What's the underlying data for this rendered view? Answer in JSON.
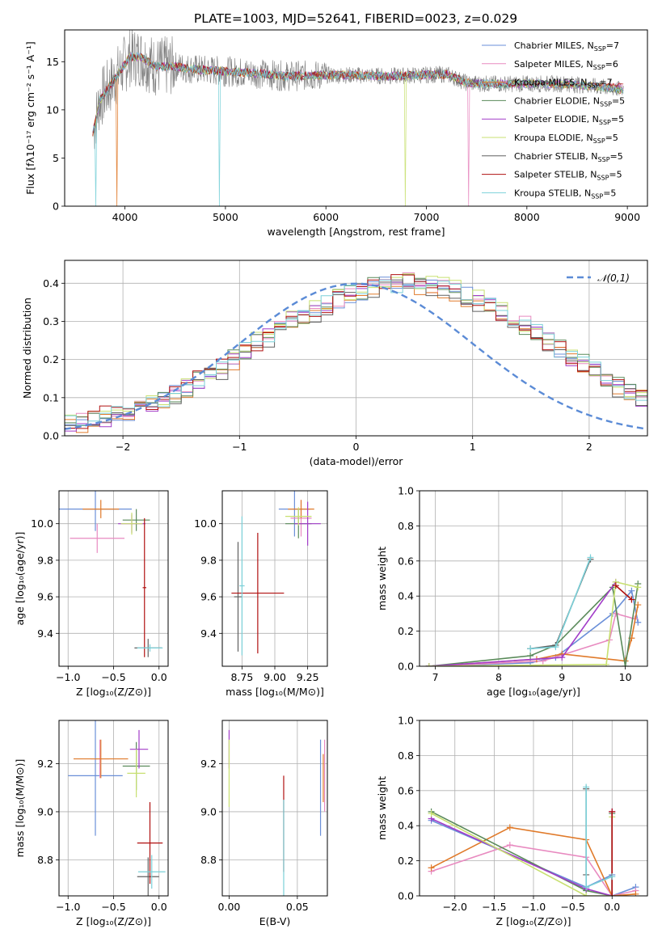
{
  "figure_title": "PLATE=1003, MJD=52641, FIBERID=0023, z=0.029",
  "series_colors": [
    "#6a8fd8",
    "#e88ac0",
    "#e07a2a",
    "#5a8a5a",
    "#a23cc8",
    "#c8e070",
    "#606060",
    "#b01010",
    "#7ad0d8"
  ],
  "chart_data": [
    {
      "id": "spectrum",
      "type": "line",
      "xlabel": "wavelength [Angstrom, rest frame]",
      "ylabel": "Flux [fλ10⁻¹⁷ erg cm⁻² s⁻¹ A⁻¹]",
      "xlim": [
        3400,
        9200
      ],
      "ylim": [
        0,
        18.3
      ],
      "xticks": [
        4000,
        5000,
        6000,
        7000,
        8000,
        9000
      ],
      "yticks": [
        0,
        5,
        10,
        15
      ],
      "grid": false,
      "legend": "top-right",
      "continuum_x": [
        3680,
        3750,
        3850,
        3950,
        4050,
        4150,
        4300,
        4500,
        4700,
        5000,
        5300,
        5600,
        6000,
        6300,
        6600,
        6900,
        7200,
        7400,
        7600,
        8000,
        8400,
        8800,
        9000
      ],
      "continuum_y": [
        7.5,
        11,
        12.5,
        14,
        15.5,
        15.5,
        14.5,
        14.5,
        14.2,
        14,
        13.8,
        13.5,
        13.6,
        13.6,
        13.5,
        13.6,
        13.7,
        12.8,
        12.7,
        12.7,
        12.7,
        12.3,
        12
      ],
      "series": [
        {
          "name": "Chabrier MILES, N_SSP=7"
        },
        {
          "name": "Salpeter MILES, N_SSP=6"
        },
        {
          "name": "Kroupa MILES, N_SSP=7"
        },
        {
          "name": "Chabrier ELODIE, N_SSP=5"
        },
        {
          "name": "Salpeter ELODIE, N_SSP=5"
        },
        {
          "name": "Kroupa ELODIE, N_SSP=5"
        },
        {
          "name": "Chabrier STELIB, N_SSP=5"
        },
        {
          "name": "Salpeter STELIB, N_SSP=5"
        },
        {
          "name": "Kroupa STELIB, N_SSP=5"
        }
      ]
    },
    {
      "id": "residuals",
      "type": "bar",
      "xlabel": "(data-model)/error",
      "ylabel": "Normed distribution",
      "xlim": [
        -2.5,
        2.5
      ],
      "ylim": [
        0,
        0.46
      ],
      "xticks": [
        -2,
        -1,
        0,
        1,
        2
      ],
      "yticks": [
        0.0,
        0.1,
        0.2,
        0.3,
        0.4
      ],
      "grid": true,
      "legend": "top-right",
      "reference_name": "𝒩(0,1)",
      "bin_width": 0.1,
      "bins_start": -2.5,
      "histogram_mean": [
        0.032,
        0.036,
        0.042,
        0.05,
        0.058,
        0.064,
        0.071,
        0.082,
        0.094,
        0.108,
        0.124,
        0.142,
        0.16,
        0.178,
        0.198,
        0.22,
        0.242,
        0.26,
        0.284,
        0.304,
        0.31,
        0.326,
        0.344,
        0.358,
        0.372,
        0.38,
        0.39,
        0.392,
        0.396,
        0.398,
        0.396,
        0.392,
        0.386,
        0.378,
        0.366,
        0.354,
        0.338,
        0.322,
        0.304,
        0.286,
        0.268,
        0.246,
        0.228,
        0.208,
        0.188,
        0.168,
        0.15,
        0.132,
        0.118,
        0.102,
        0.088,
        0.074,
        0.066,
        0.058,
        0.05,
        0.044,
        0.04,
        0.034,
        0.03,
        0.028,
        0.026
      ]
    },
    {
      "id": "age-vs-Z",
      "type": "scatter",
      "xlabel": "Z [log₁₀(Z/Z⊙)]",
      "ylabel": "age  [log₁₀(age/yr)]",
      "xlim": [
        -1.1,
        0.1
      ],
      "ylim": [
        9.22,
        10.18
      ],
      "xticks": [
        -1.0,
        -0.5,
        0.0
      ],
      "yticks": [
        9.4,
        9.6,
        9.8,
        10.0
      ],
      "grid": true,
      "points": [
        {
          "s": 0,
          "x": -0.7,
          "y": 10.08,
          "xerr": 0.4,
          "yerr": 0.12
        },
        {
          "s": 1,
          "x": -0.68,
          "y": 9.92,
          "xerr": 0.3,
          "yerr": 0.08
        },
        {
          "s": 2,
          "x": -0.64,
          "y": 10.08,
          "xerr": 0.2,
          "yerr": 0.05
        },
        {
          "s": 3,
          "x": -0.25,
          "y": 10.02,
          "xerr": 0.15,
          "yerr": 0.06
        },
        {
          "s": 4,
          "x": -0.3,
          "y": 10.0,
          "xerr": 0.15,
          "yerr": 0.05
        },
        {
          "s": 5,
          "x": -0.3,
          "y": 10.0,
          "xerr": 0.12,
          "yerr": 0.06
        },
        {
          "s": 6,
          "x": -0.12,
          "y": 9.32,
          "xerr": 0.15,
          "yerr": 0.05
        },
        {
          "s": 7,
          "x": -0.16,
          "y": 9.65,
          "xerr": 0.02,
          "yerr": 0.38
        },
        {
          "s": 8,
          "x": -0.1,
          "y": 9.32,
          "xerr": 0.14,
          "yerr": 0.02
        }
      ]
    },
    {
      "id": "age-vs-mass",
      "type": "scatter",
      "xlabel": "mass [log₁₀(M/M⊙)]",
      "ylabel": "",
      "xlim": [
        8.6,
        9.4
      ],
      "ylim": [
        9.22,
        10.18
      ],
      "xticks": [
        8.75,
        9.0,
        9.25
      ],
      "yticks": [
        9.4,
        9.6,
        9.8,
        10.0
      ],
      "grid": true,
      "points": [
        {
          "s": 0,
          "x": 9.15,
          "y": 10.08,
          "xerr": 0.12,
          "yerr": 0.15
        },
        {
          "s": 1,
          "x": 9.2,
          "y": 10.03,
          "xerr": 0.08,
          "yerr": 0.1
        },
        {
          "s": 2,
          "x": 9.2,
          "y": 10.08,
          "xerr": 0.1,
          "yerr": 0.05
        },
        {
          "s": 3,
          "x": 9.18,
          "y": 10.0,
          "xerr": 0.1,
          "yerr": 0.08
        },
        {
          "s": 4,
          "x": 9.25,
          "y": 10.0,
          "xerr": 0.1,
          "yerr": 0.12
        },
        {
          "s": 5,
          "x": 9.18,
          "y": 10.04,
          "xerr": 0.1,
          "yerr": 0.05
        },
        {
          "s": 6,
          "x": 8.72,
          "y": 9.6,
          "xerr": 0.03,
          "yerr": 0.3
        },
        {
          "s": 7,
          "x": 8.87,
          "y": 9.62,
          "xerr": 0.2,
          "yerr": 0.33
        },
        {
          "s": 8,
          "x": 8.75,
          "y": 9.66,
          "xerr": 0.02,
          "yerr": 0.38
        }
      ]
    },
    {
      "id": "weight-vs-age",
      "type": "line",
      "xlabel": "age  [log₁₀(age/yr)]",
      "ylabel": "mass weight",
      "xlim": [
        6.75,
        10.35
      ],
      "ylim": [
        0,
        1
      ],
      "xticks": [
        7,
        8,
        9,
        10
      ],
      "yticks": [
        0.0,
        0.2,
        0.4,
        0.6,
        0.8,
        1.0
      ],
      "grid": true,
      "series": [
        {
          "s": 0,
          "x": [
            6.9,
            8.5,
            8.9,
            9.8,
            10.1,
            10.2
          ],
          "y": [
            0.0,
            0.02,
            0.05,
            0.3,
            0.43,
            0.25
          ]
        },
        {
          "s": 1,
          "x": [
            6.9,
            8.7,
            9.75,
            9.85,
            10.15
          ],
          "y": [
            0.0,
            0.03,
            0.15,
            0.3,
            0.27
          ]
        },
        {
          "s": 2,
          "x": [
            6.9,
            8.6,
            9.0,
            10.0,
            10.1,
            10.2
          ],
          "y": [
            0.0,
            0.04,
            0.07,
            0.03,
            0.16,
            0.35
          ]
        },
        {
          "s": 3,
          "x": [
            6.9,
            8.5,
            8.9,
            9.8,
            10.0,
            10.2
          ],
          "y": [
            0.0,
            0.06,
            0.12,
            0.45,
            0.0,
            0.47
          ]
        },
        {
          "s": 4,
          "x": [
            6.9,
            9.0,
            9.85
          ],
          "y": [
            0.0,
            0.05,
            0.48
          ]
        },
        {
          "s": 5,
          "x": [
            6.9,
            9.7,
            9.85,
            10.2
          ],
          "y": [
            0.0,
            0.01,
            0.48,
            0.45
          ]
        },
        {
          "s": 6,
          "x": [
            8.5,
            8.9,
            9.45
          ],
          "y": [
            0.1,
            0.12,
            0.61
          ]
        },
        {
          "s": 7,
          "x": [
            9.85,
            10.1
          ],
          "y": [
            0.46,
            0.38
          ]
        },
        {
          "s": 8,
          "x": [
            8.5,
            8.9,
            9.45
          ],
          "y": [
            0.1,
            0.11,
            0.62
          ]
        }
      ]
    },
    {
      "id": "mass-vs-Z",
      "type": "scatter",
      "xlabel": "Z [log₁₀(Z/Z⊙)]",
      "ylabel": "mass [log₁₀(M/M⊙)]",
      "xlim": [
        -1.1,
        0.1
      ],
      "ylim": [
        8.65,
        9.38
      ],
      "xticks": [
        -1.0,
        -0.5,
        0.0
      ],
      "yticks": [
        8.8,
        9.0,
        9.2
      ],
      "grid": true,
      "points": [
        {
          "s": 0,
          "x": -0.7,
          "y": 9.15,
          "xerr": 0.3,
          "yerr": 0.25
        },
        {
          "s": 1,
          "x": -0.65,
          "y": 9.22,
          "xerr": 0.1,
          "yerr": 0.08
        },
        {
          "s": 2,
          "x": -0.64,
          "y": 9.22,
          "xerr": 0.3,
          "yerr": 0.08
        },
        {
          "s": 3,
          "x": -0.25,
          "y": 9.19,
          "xerr": 0.15,
          "yerr": 0.1
        },
        {
          "s": 4,
          "x": -0.22,
          "y": 9.26,
          "xerr": 0.1,
          "yerr": 0.08
        },
        {
          "s": 5,
          "x": -0.25,
          "y": 9.16,
          "xerr": 0.1,
          "yerr": 0.1
        },
        {
          "s": 6,
          "x": -0.12,
          "y": 8.73,
          "xerr": 0.12,
          "yerr": 0.08
        },
        {
          "s": 7,
          "x": -0.1,
          "y": 8.87,
          "xerr": 0.14,
          "yerr": 0.17
        },
        {
          "s": 8,
          "x": -0.08,
          "y": 8.75,
          "xerr": 0.15,
          "yerr": 0.07
        }
      ]
    },
    {
      "id": "mass-vs-EBV",
      "type": "scatter",
      "xlabel": "E(B-V)",
      "ylabel": "",
      "xlim": [
        -0.005,
        0.072
      ],
      "ylim": [
        8.65,
        9.38
      ],
      "xticks": [
        0.0,
        0.05
      ],
      "yticks": [
        8.8,
        9.0,
        9.2
      ],
      "grid": true,
      "points": [
        {
          "s": 4,
          "x": 0.0,
          "y": 9.26,
          "xerr": 0,
          "yerr": 0.08
        },
        {
          "s": 5,
          "x": 0.0,
          "y": 9.16,
          "xerr": 0,
          "yerr": 0.14
        },
        {
          "s": 7,
          "x": 0.04,
          "y": 8.95,
          "xerr": 0,
          "yerr": 0.2
        },
        {
          "s": 8,
          "x": 0.04,
          "y": 8.85,
          "xerr": 0,
          "yerr": 0.2
        },
        {
          "s": 2,
          "x": 0.069,
          "y": 9.14,
          "xerr": 0,
          "yerr": 0.1
        },
        {
          "s": 1,
          "x": 0.07,
          "y": 9.15,
          "xerr": 0,
          "yerr": 0.15
        },
        {
          "s": 0,
          "x": 0.067,
          "y": 9.1,
          "xerr": 0,
          "yerr": 0.2
        }
      ]
    },
    {
      "id": "weight-vs-Z",
      "type": "line",
      "xlabel": "Z [log₁₀(Z/Z⊙)]",
      "ylabel": "mass weight",
      "xlim": [
        -2.45,
        0.45
      ],
      "ylim": [
        0,
        1
      ],
      "xticks": [
        -2.0,
        -1.5,
        -1.0,
        -0.5,
        0.0
      ],
      "yticks": [
        0.0,
        0.2,
        0.4,
        0.6,
        0.8,
        1.0
      ],
      "grid": true,
      "series": [
        {
          "s": 0,
          "x": [
            -2.3,
            -0.33,
            0.0,
            0.0,
            0.3
          ],
          "y": [
            0.43,
            0.05,
            0.12,
            0.0,
            0.05
          ]
        },
        {
          "s": 1,
          "x": [
            -2.3,
            -1.3,
            -0.33,
            0.0,
            0.3
          ],
          "y": [
            0.14,
            0.29,
            0.22,
            0.0,
            0.03
          ]
        },
        {
          "s": 2,
          "x": [
            -2.3,
            -1.3,
            -0.33,
            0.0,
            0.3
          ],
          "y": [
            0.16,
            0.39,
            0.32,
            0.0,
            0.01
          ]
        },
        {
          "s": 3,
          "x": [
            -2.3,
            -0.33,
            0.0,
            0.0
          ],
          "y": [
            0.48,
            0.03,
            0.0,
            0.47
          ]
        },
        {
          "s": 4,
          "x": [
            -2.3,
            -0.33,
            0.0,
            0.0
          ],
          "y": [
            0.44,
            0.04,
            0.0,
            0.48
          ]
        },
        {
          "s": 5,
          "x": [
            -2.3,
            -0.33,
            0.0,
            0.0
          ],
          "y": [
            0.47,
            0.0,
            0.0,
            0.45
          ]
        },
        {
          "s": 6,
          "x": [
            -0.33,
            -0.33
          ],
          "y": [
            0.12,
            0.61
          ]
        },
        {
          "s": 7,
          "x": [
            0.0,
            0.0
          ],
          "y": [
            0.48,
            0.0
          ]
        },
        {
          "s": 8,
          "x": [
            -0.33,
            -0.33,
            0.0
          ],
          "y": [
            0.62,
            0.05,
            0.11
          ]
        }
      ]
    }
  ]
}
